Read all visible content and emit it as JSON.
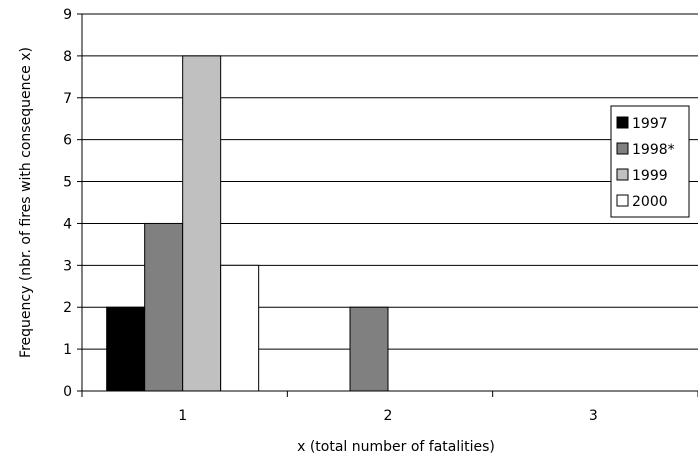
{
  "chart_data": {
    "type": "bar",
    "categories": [
      "1",
      "2",
      "3"
    ],
    "series": [
      {
        "name": "1997",
        "values": [
          2,
          0,
          0
        ],
        "color": "#000000"
      },
      {
        "name": "1998*",
        "values": [
          4,
          2,
          0
        ],
        "color": "#808080"
      },
      {
        "name": "1999",
        "values": [
          8,
          0,
          0
        ],
        "color": "#c0c0c0"
      },
      {
        "name": "2000",
        "values": [
          3,
          0,
          0
        ],
        "color": "#ffffff"
      }
    ],
    "title": "",
    "xlabel": "x (total number of fatalities)",
    "ylabel": "Frequency (nbr. of fires with consequence x)",
    "ylim": [
      0,
      9
    ],
    "yticks": [
      0,
      1,
      2,
      3,
      4,
      5,
      6,
      7,
      8,
      9
    ],
    "grid": true,
    "legend_position": "right"
  }
}
